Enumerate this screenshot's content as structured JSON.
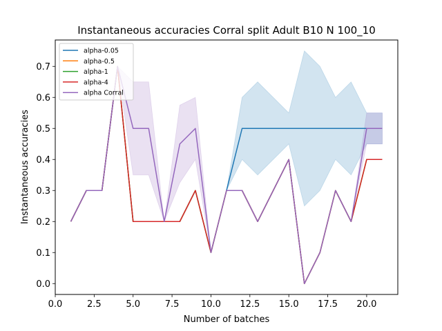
{
  "chart_data": {
    "type": "line",
    "title": "Instantaneous accuracies Corral split Adult B10 N 100_10",
    "xlabel": "Number of batches",
    "ylabel": "Instantaneous accuracies",
    "xlim": [
      0.0,
      22.0
    ],
    "ylim": [
      -0.035,
      0.785
    ],
    "xticks": [
      0.0,
      2.5,
      5.0,
      7.5,
      10.0,
      12.5,
      15.0,
      17.5,
      20.0
    ],
    "xtick_labels": [
      "0.0",
      "2.5",
      "5.0",
      "7.5",
      "10.0",
      "12.5",
      "15.0",
      "17.5",
      "20.0"
    ],
    "yticks": [
      0.0,
      0.1,
      0.2,
      0.3,
      0.4,
      0.5,
      0.6,
      0.7
    ],
    "ytick_labels": [
      "0.0",
      "0.1",
      "0.2",
      "0.3",
      "0.4",
      "0.5",
      "0.6",
      "0.7"
    ],
    "grid": false,
    "legend_position": "top-left",
    "x": [
      1,
      2,
      3,
      4,
      5,
      6,
      7,
      8,
      9,
      10,
      11,
      12,
      13,
      14,
      15,
      16,
      17,
      18,
      19,
      20,
      21
    ],
    "series": [
      {
        "name": "alpha-0.05",
        "color": "#1f77b4",
        "values": [
          0.2,
          0.3,
          0.3,
          0.7,
          0.2,
          0.2,
          0.2,
          0.2,
          0.3,
          0.1,
          0.3,
          0.5,
          0.5,
          0.5,
          0.5,
          0.5,
          0.5,
          0.5,
          0.5,
          0.5,
          0.5
        ],
        "band_lower": [
          0.2,
          0.3,
          0.3,
          0.7,
          0.2,
          0.2,
          0.2,
          0.2,
          0.3,
          0.1,
          0.3,
          0.4,
          0.35,
          0.4,
          0.45,
          0.25,
          0.3,
          0.4,
          0.35,
          0.45,
          0.45
        ],
        "band_upper": [
          0.2,
          0.3,
          0.3,
          0.7,
          0.2,
          0.2,
          0.2,
          0.2,
          0.3,
          0.1,
          0.3,
          0.6,
          0.65,
          0.6,
          0.55,
          0.75,
          0.7,
          0.6,
          0.65,
          0.55,
          0.55
        ]
      },
      {
        "name": "alpha-0.5",
        "color": "#ff7f0e",
        "values": [
          0.2,
          0.3,
          0.3,
          0.7,
          0.2,
          0.2,
          0.2,
          0.2,
          0.3,
          0.1,
          0.3,
          0.3,
          0.2,
          0.3,
          0.4,
          0.0,
          0.1,
          0.3,
          0.2,
          0.4,
          0.4
        ]
      },
      {
        "name": "alpha-1",
        "color": "#2ca02c",
        "values": [
          0.2,
          0.3,
          0.3,
          0.7,
          0.2,
          0.2,
          0.2,
          0.2,
          0.3,
          0.1,
          0.3,
          0.3,
          0.2,
          0.3,
          0.4,
          0.0,
          0.1,
          0.3,
          0.2,
          0.4,
          0.4
        ]
      },
      {
        "name": "alpha-4",
        "color": "#d62728",
        "values": [
          0.2,
          0.3,
          0.3,
          0.7,
          0.2,
          0.2,
          0.2,
          0.2,
          0.3,
          0.1,
          0.3,
          0.3,
          0.2,
          0.3,
          0.4,
          0.0,
          0.1,
          0.3,
          0.2,
          0.4,
          0.4
        ]
      },
      {
        "name": "alpha Corral",
        "color": "#9467bd",
        "values": [
          0.2,
          0.3,
          0.3,
          0.7,
          0.5,
          0.5,
          0.2,
          0.45,
          0.5,
          0.1,
          0.3,
          0.3,
          0.2,
          0.3,
          0.4,
          0.0,
          0.1,
          0.3,
          0.2,
          0.5,
          0.5
        ],
        "band_lower": [
          0.2,
          0.3,
          0.3,
          0.7,
          0.35,
          0.35,
          0.2,
          0.325,
          0.4,
          0.1,
          0.3,
          0.3,
          0.2,
          0.3,
          0.4,
          0.0,
          0.1,
          0.3,
          0.2,
          0.45,
          0.45
        ],
        "band_upper": [
          0.2,
          0.3,
          0.3,
          0.7,
          0.65,
          0.65,
          0.2,
          0.575,
          0.6,
          0.1,
          0.3,
          0.3,
          0.2,
          0.3,
          0.4,
          0.0,
          0.1,
          0.3,
          0.2,
          0.55,
          0.55
        ]
      }
    ]
  }
}
